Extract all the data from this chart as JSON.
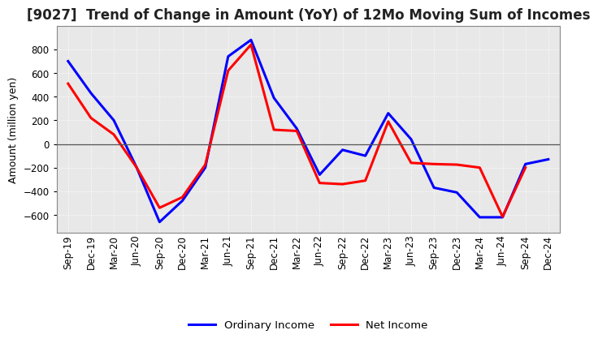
{
  "title": "[9027]  Trend of Change in Amount (YoY) of 12Mo Moving Sum of Incomes",
  "ylabel": "Amount (million yen)",
  "x_labels": [
    "Sep-19",
    "Dec-19",
    "Mar-20",
    "Jun-20",
    "Sep-20",
    "Dec-20",
    "Mar-21",
    "Jun-21",
    "Sep-21",
    "Dec-21",
    "Mar-22",
    "Jun-22",
    "Sep-22",
    "Dec-22",
    "Mar-23",
    "Jun-23",
    "Sep-23",
    "Dec-23",
    "Mar-24",
    "Jun-24",
    "Sep-24",
    "Dec-24"
  ],
  "ordinary_income": [
    700,
    430,
    200,
    -200,
    -660,
    -480,
    -200,
    740,
    880,
    390,
    130,
    -260,
    -50,
    -100,
    260,
    40,
    -370,
    -410,
    -620,
    -620,
    -170,
    -130
  ],
  "net_income": [
    510,
    220,
    80,
    -200,
    -540,
    -450,
    -175,
    620,
    840,
    120,
    110,
    -330,
    -340,
    -310,
    190,
    -160,
    -170,
    -175,
    -200,
    -615,
    -200,
    null
  ],
  "ordinary_income_color": "#0000ff",
  "net_income_color": "#ff0000",
  "ylim": [
    -750,
    1000
  ],
  "yticks": [
    -600,
    -400,
    -200,
    0,
    200,
    400,
    600,
    800
  ],
  "background_color": "#ffffff",
  "plot_bg_color": "#e8e8e8",
  "grid_color": "#aaaaaa",
  "title_fontsize": 12,
  "axis_fontsize": 9,
  "tick_fontsize": 8.5,
  "legend_labels": [
    "Ordinary Income",
    "Net Income"
  ],
  "line_width": 2.2
}
